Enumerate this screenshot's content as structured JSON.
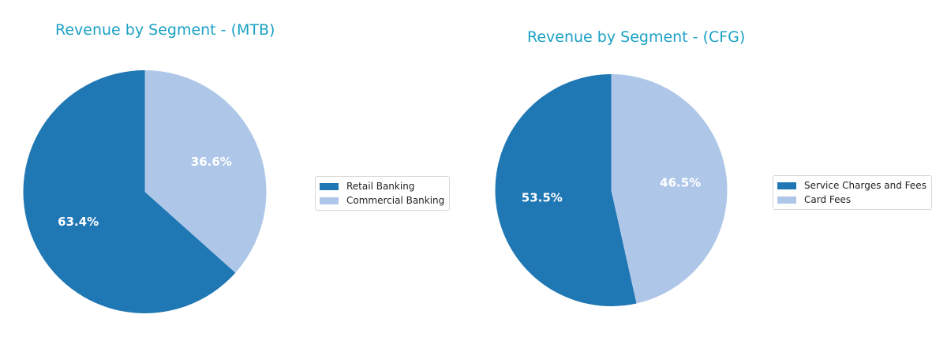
{
  "colors": {
    "title": "#1ba1c4",
    "primary": "#1f77b4",
    "secondary": "#aec7e8",
    "pct_text": "#ffffff"
  },
  "chart_data": [
    {
      "type": "pie",
      "title": "Revenue by Segment - (MTB)",
      "labels": [
        "Retail Banking",
        "Commercial Banking"
      ],
      "values": [
        63.4,
        36.6
      ],
      "pct_labels": [
        "63.4%",
        "36.6%"
      ],
      "colors": [
        "#1f77b4",
        "#aec7e8"
      ],
      "start_angle_deg": 90,
      "direction": "counterclockwise",
      "legend_placement": "right"
    },
    {
      "type": "pie",
      "title": "Revenue by Segment - (CFG)",
      "labels": [
        "Service Charges and Fees",
        "Card Fees"
      ],
      "values": [
        53.5,
        46.5
      ],
      "pct_labels": [
        "53.5%",
        "46.5%"
      ],
      "colors": [
        "#1f77b4",
        "#aec7e8"
      ],
      "start_angle_deg": 90,
      "direction": "counterclockwise",
      "legend_placement": "right"
    }
  ]
}
